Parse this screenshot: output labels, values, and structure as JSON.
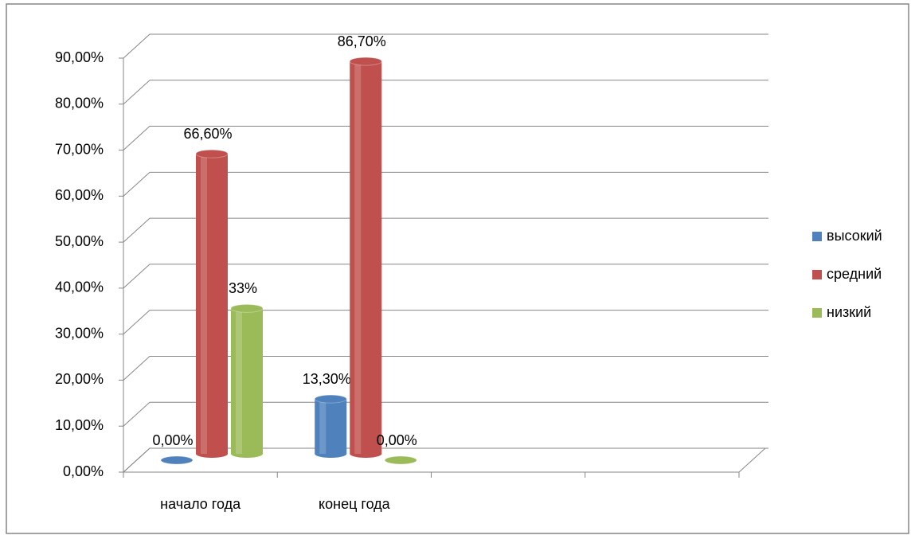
{
  "chart_data": {
    "type": "bar3d",
    "categories": [
      "начало года",
      "конец года",
      null,
      null
    ],
    "series": [
      {
        "name": "высокий",
        "color": "#4f81bd",
        "values": [
          0,
          13.3,
          null,
          null
        ],
        "value_labels": [
          "0,00%",
          "13,30%",
          null,
          null
        ]
      },
      {
        "name": "средний",
        "color": "#c0504d",
        "values": [
          66.6,
          86.7,
          null,
          null
        ],
        "value_labels": [
          "66,60%",
          "86,70%",
          null,
          null
        ]
      },
      {
        "name": "низкий",
        "color": "#9bbb59",
        "values": [
          33,
          0,
          null,
          null
        ],
        "value_labels": [
          "33%",
          "0,00%",
          null,
          null
        ]
      }
    ],
    "ylim": [
      0,
      90
    ],
    "yticks": [
      {
        "value": 0,
        "label": "0,00%"
      },
      {
        "value": 10,
        "label": "10,00%"
      },
      {
        "value": 20,
        "label": "20,00%"
      },
      {
        "value": 30,
        "label": "30,00%"
      },
      {
        "value": 40,
        "label": "40,00%"
      },
      {
        "value": 50,
        "label": "50,00%"
      },
      {
        "value": 60,
        "label": "60,00%"
      },
      {
        "value": 70,
        "label": "70,00%"
      },
      {
        "value": 80,
        "label": "80,00%"
      },
      {
        "value": 90,
        "label": "90,00%"
      }
    ],
    "grid": true,
    "legend": "right"
  }
}
